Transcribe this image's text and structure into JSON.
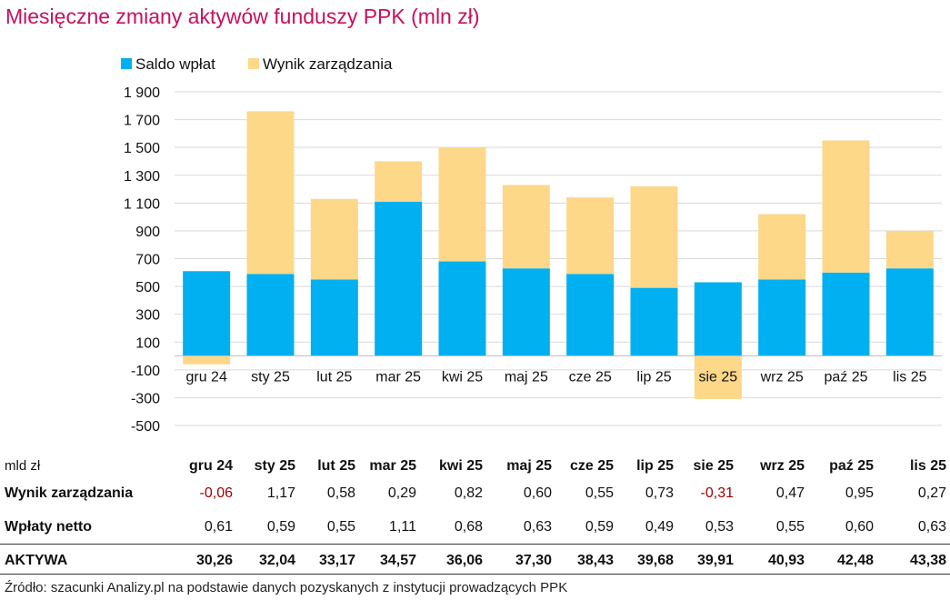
{
  "title": "Miesięczne zmiany aktywów funduszy PPK (mln zł)",
  "chart_data": {
    "type": "bar",
    "stacked": true,
    "categories": [
      "gru 24",
      "sty 25",
      "lut 25",
      "mar 25",
      "kwi 25",
      "maj 25",
      "cze 25",
      "lip 25",
      "sie 25",
      "wrz 25",
      "paź 25",
      "lis 25"
    ],
    "series": [
      {
        "name": "Saldo wpłat",
        "color": "#00b0f0",
        "values": [
          610,
          590,
          550,
          1110,
          680,
          630,
          590,
          490,
          530,
          550,
          600,
          630
        ]
      },
      {
        "name": "Wynik zarządzania",
        "color": "#fdd889",
        "values": [
          -60,
          1170,
          580,
          290,
          820,
          600,
          550,
          730,
          -310,
          470,
          950,
          270
        ]
      }
    ],
    "ylim": [
      -500,
      1900
    ],
    "yticks": [
      1900,
      1700,
      1500,
      1300,
      1100,
      900,
      700,
      500,
      300,
      100,
      -100,
      -300,
      -500
    ],
    "ytick_labels": [
      "1 900",
      "1 700",
      "1 500",
      "1 300",
      "1 100",
      "900",
      "700",
      "500",
      "300",
      "100",
      "-100",
      "-300",
      "-500"
    ],
    "grid": true,
    "legend": "top-left"
  },
  "table": {
    "unit": "mld zł",
    "columns": [
      "gru 24",
      "sty 25",
      "lut 25",
      "mar 25",
      "kwi 25",
      "maj 25",
      "cze 25",
      "lip 25",
      "sie 25",
      "wrz 25",
      "paź 25",
      "lis 25"
    ],
    "rows": [
      {
        "label": "Wynik zarządzania",
        "values": [
          "-0,06",
          "1,17",
          "0,58",
          "0,29",
          "0,82",
          "0,60",
          "0,55",
          "0,73",
          "-0,31",
          "0,47",
          "0,95",
          "0,27"
        ]
      },
      {
        "label": "Wpłaty netto",
        "values": [
          "0,61",
          "0,59",
          "0,55",
          "1,11",
          "0,68",
          "0,63",
          "0,59",
          "0,49",
          "0,53",
          "0,55",
          "0,60",
          "0,63"
        ]
      },
      {
        "label": "AKTYWA",
        "values": [
          "30,26",
          "32,04",
          "33,17",
          "34,57",
          "36,06",
          "37,30",
          "38,43",
          "39,68",
          "39,91",
          "40,93",
          "42,48",
          "43,38"
        ]
      }
    ]
  },
  "source": "Źródło: szacunki Analizy.pl na podstawie danych pozyskanych z instytucji prowadzących PPK"
}
